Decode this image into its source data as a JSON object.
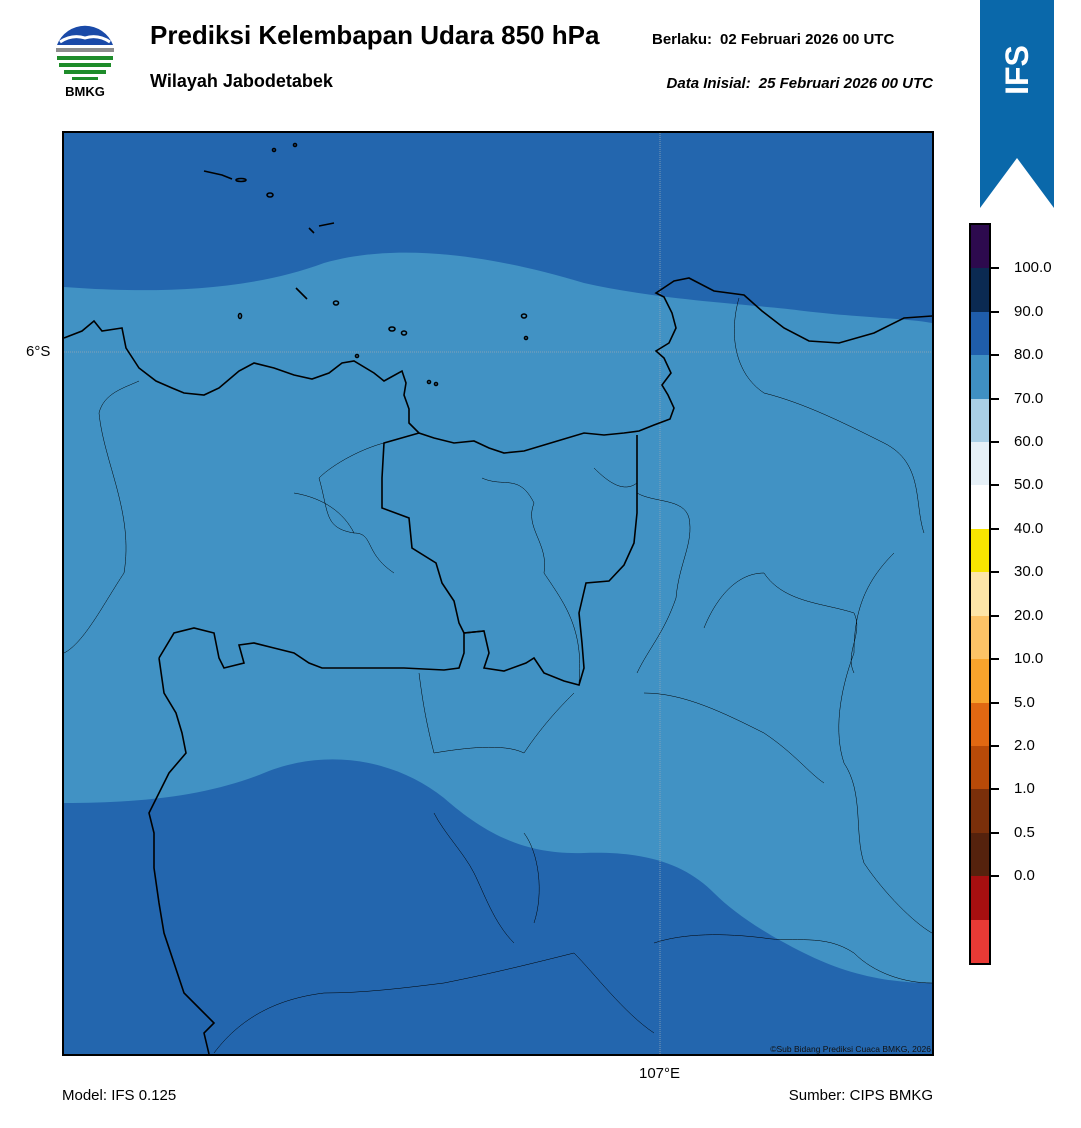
{
  "header": {
    "title": "Prediksi Kelembapan Udara 850 hPa",
    "region": "Wilayah Jabodetabek",
    "valid_label": "Berlaku:",
    "valid_value": "02 Februari 2026 00 UTC",
    "init_label": "Data Inisial:",
    "init_value": "25 Februari 2026 00 UTC"
  },
  "logo": {
    "text": "BMKG"
  },
  "badge": {
    "text": "IFS"
  },
  "axes": {
    "lat_label": "6°S",
    "lon_label": "107°E"
  },
  "footer": {
    "model": "Model: IFS 0.125",
    "source": "Sumber: CIPS BMKG"
  },
  "credit": "©Sub Bidang Prediksi Cuaca BMKG, 2026",
  "colorbar": {
    "ticks": [
      "100.0",
      "90.0",
      "80.0",
      "70.0",
      "60.0",
      "50.0",
      "40.0",
      "30.0",
      "20.0",
      "10.0",
      "5.0",
      "2.0",
      "1.0",
      "0.5",
      "0.0"
    ],
    "colors_top_to_bottom": [
      "#2d0a4e",
      "#0b2a52",
      "#1f5dab",
      "#3f8fc2",
      "#a9cfe6",
      "#e6f0f7",
      "#ffffff",
      "#f7e400",
      "#fde5a7",
      "#fcc366",
      "#f8a42c",
      "#e16812",
      "#b84a08",
      "#7a2f0a",
      "#55220d",
      "#a60f10",
      "#e83a35"
    ]
  },
  "map": {
    "colors": {
      "humidity_80_90": "#2366ae",
      "humidity_70_80": "#4192c4",
      "border": "#000000"
    }
  }
}
